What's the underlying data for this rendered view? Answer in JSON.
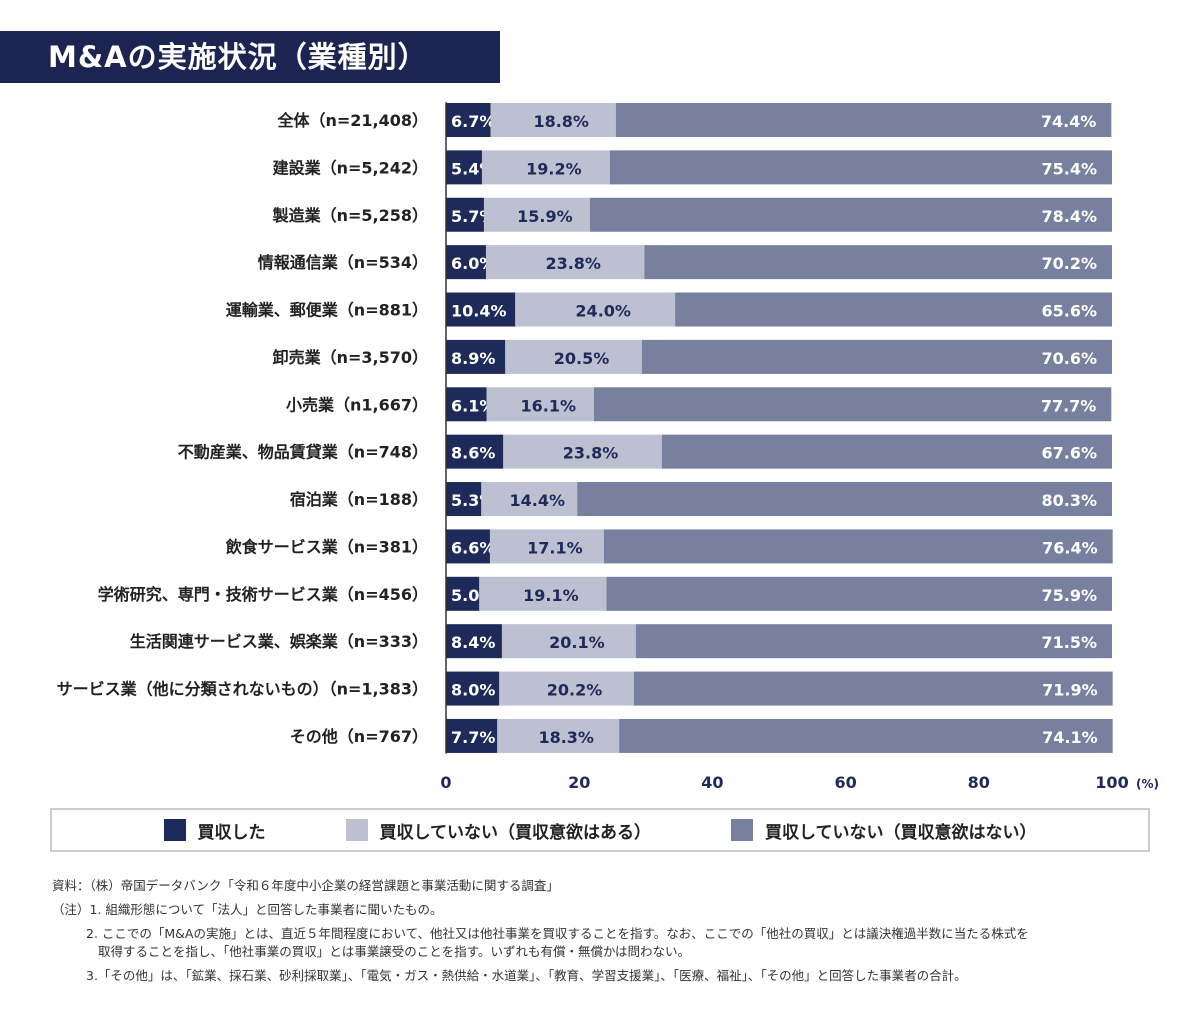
{
  "title": "M&Aの実施状況（業種別）",
  "colors": {
    "bought": "#1e2a5a",
    "not_but_willing": "#bcc0d0",
    "not_unwilling": "#7880a0"
  },
  "chart_data": {
    "type": "bar",
    "orientation": "horizontal",
    "stacked": true,
    "categories": [
      "全体（n=21,408）",
      "建設業（n=5,242）",
      "製造業（n=5,258）",
      "情報通信業（n=534）",
      "運輸業、郵便業（n=881）",
      "卸売業（n=3,570）",
      "小売業（n1,667）",
      "不動産業、物品賃貸業（n=748）",
      "宿泊業（n=188）",
      "飲食サービス業（n=381）",
      "学術研究、専門・技術サービス業（n=456）",
      "生活関連サービス業、娯楽業（n=333）",
      "サービス業（他に分類されないもの）（n=1,383）",
      "その他（n=767）"
    ],
    "series": [
      {
        "name": "買収した",
        "values": [
          6.7,
          5.4,
          5.7,
          6.0,
          10.4,
          8.9,
          6.1,
          8.6,
          5.3,
          6.6,
          5.0,
          8.4,
          8.0,
          7.7
        ]
      },
      {
        "name": "買収していない（買収意欲はある）",
        "values": [
          18.8,
          19.2,
          15.9,
          23.8,
          24.0,
          20.5,
          16.1,
          23.8,
          14.4,
          17.1,
          19.1,
          20.1,
          20.2,
          18.3
        ]
      },
      {
        "name": "買収していない（買収意欲はない）",
        "values": [
          74.4,
          75.4,
          78.4,
          70.2,
          65.6,
          70.6,
          77.7,
          67.6,
          80.3,
          76.4,
          75.9,
          71.5,
          71.9,
          74.1
        ]
      }
    ],
    "xlim": [
      0,
      100
    ],
    "xticks": [
      "0",
      "20",
      "40",
      "60",
      "80",
      "100"
    ],
    "xunit": "(%)",
    "legend_position": "bottom",
    "grid": false
  },
  "notes": {
    "source": "資料：（株）帝国データバンク「令和６年度中小企業の経営課題と事業活動に関する調査」",
    "n1": "（注）1. 組織形態について「法人」と回答した事業者に聞いたもの。",
    "n2a": "2. ここでの「M&Aの実施」とは、直近５年間程度において、他社又は他社事業を買収することを指す。なお、ここでの「他社の買収」とは議決権過半数に当たる株式を",
    "n2b": "取得することを指し、「他社事業の買収」とは事業譲受のことを指す。いずれも有償・無償かは問わない。",
    "n3": "3.「その他」は、「鉱業、採石業、砂利採取業」、「電気・ガス・熱供給・水道業」、「教育、学習支援業」、「医療、福祉」、「その他」と回答した事業者の合計。"
  }
}
